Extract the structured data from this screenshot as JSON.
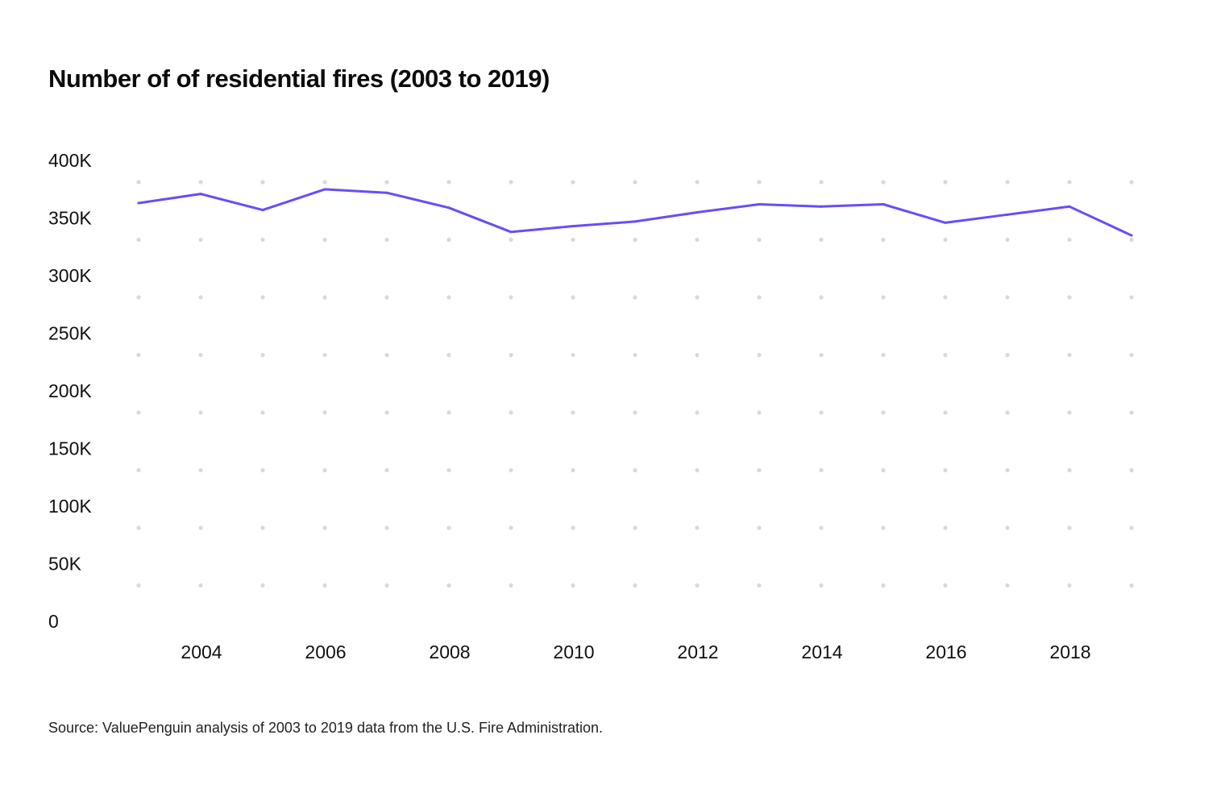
{
  "title": "Number of of residential fires (2003 to 2019)",
  "source": "Source: ValuePenguin analysis of 2003 to 2019 data from the U.S. Fire Administration.",
  "chart_data": {
    "type": "line",
    "title": "Number of of residential fires (2003 to 2019)",
    "xlabel": "",
    "ylabel": "",
    "x": [
      2003,
      2004,
      2005,
      2006,
      2007,
      2008,
      2009,
      2010,
      2011,
      2012,
      2013,
      2014,
      2015,
      2016,
      2017,
      2018,
      2019
    ],
    "series": [
      {
        "values": [
          372000,
          380000,
          366000,
          384000,
          381000,
          368000,
          347000,
          352000,
          356000,
          364000,
          371000,
          369000,
          371000,
          355000,
          362000,
          369000,
          344000
        ]
      }
    ],
    "ylim": [
      0,
      400000
    ],
    "yticks": [
      0,
      50000,
      100000,
      150000,
      200000,
      250000,
      300000,
      350000,
      400000
    ],
    "ytick_labels": [
      "0",
      "50K",
      "100K",
      "150K",
      "200K",
      "250K",
      "300K",
      "350K",
      "400K"
    ],
    "xticks": [
      2004,
      2006,
      2008,
      2010,
      2012,
      2014,
      2016,
      2018
    ],
    "xtick_labels": [
      "2004",
      "2006",
      "2008",
      "2010",
      "2012",
      "2014",
      "2016",
      "2018"
    ],
    "grid": "dotted",
    "legend": "none",
    "colors": {
      "line": "#6a4cf6",
      "grid": "#d9d9d9"
    }
  }
}
